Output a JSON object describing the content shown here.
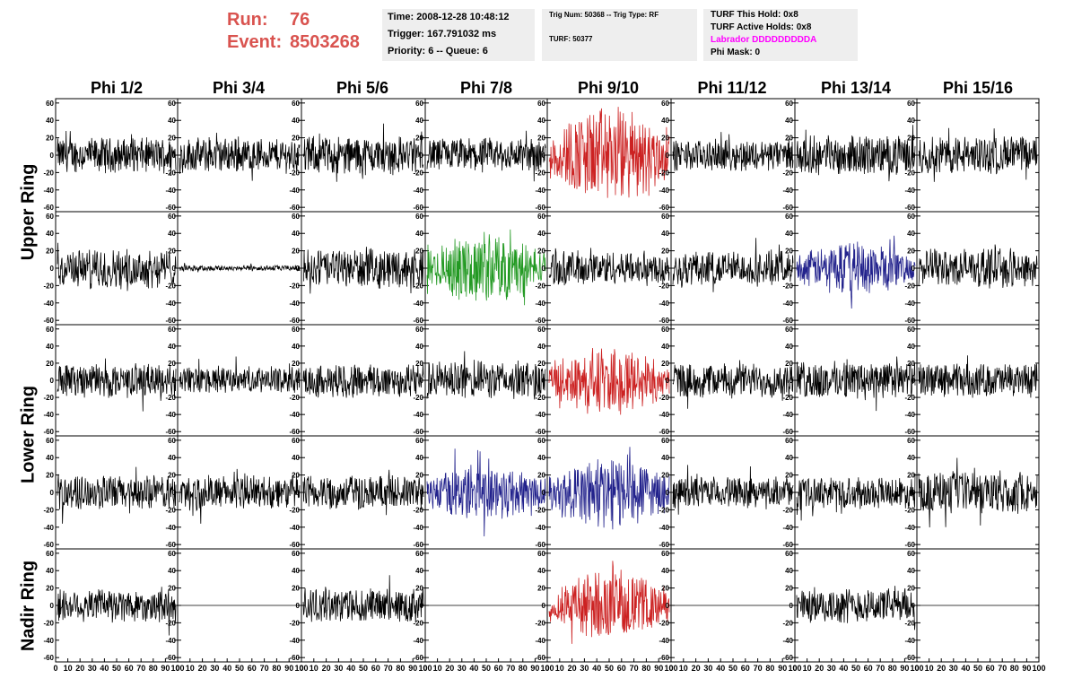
{
  "header": {
    "run_label": "Run:",
    "run_value": "76",
    "event_label": "Event:",
    "event_value": "8503268"
  },
  "info_time": {
    "time": "Time: 2008-12-28 10:48:12",
    "trigger": "Trigger: 167.791032 ms",
    "priority": "Priority: 6 -- Queue: 6"
  },
  "info_trig": {
    "trig": "Trig Num: 50368 -- Trig Type: RF",
    "turf": "TURF: 50377"
  },
  "info_turf": {
    "this_hold": "TURF This Hold: 0x8",
    "active_holds": "TURF Active Holds: 0x8",
    "labrador": "Labrador DDDDDDDDDA",
    "phi_mask": "Phi Mask: 0"
  },
  "colors": {
    "run_text": "#d9534f",
    "labrador": "#ff00ff",
    "trace_black": "#000000",
    "trace_red": "#cc2222",
    "trace_green": "#229922",
    "trace_blue": "#22228c",
    "info_bg": "#eeeeee"
  },
  "chart_data": {
    "type": "line",
    "columns": [
      "Phi 1/2",
      "Phi 3/4",
      "Phi 5/6",
      "Phi 7/8",
      "Phi 9/10",
      "Phi 11/12",
      "Phi 13/14",
      "Phi 15/16"
    ],
    "rows": [
      "Upper Ring",
      "Upper Ring",
      "Lower Ring",
      "Lower Ring",
      "Nadir Ring"
    ],
    "ring_labels": [
      "Upper Ring",
      "Lower Ring",
      "Nadir Ring"
    ],
    "ylim": [
      -65,
      65
    ],
    "xlim": [
      0,
      100
    ],
    "x_tick_labels": [
      "0",
      "10",
      "20",
      "30",
      "40",
      "50",
      "60",
      "70",
      "80",
      "90",
      "100"
    ],
    "y_tick_labels": [
      "-60",
      "-40",
      "-20",
      "0",
      "20",
      "40",
      "60"
    ],
    "trace_colors": [
      [
        "black",
        "black",
        "black",
        "black",
        "red",
        "black",
        "black",
        "black"
      ],
      [
        "black",
        "black",
        "black",
        "green",
        "black",
        "black",
        "blue",
        "black"
      ],
      [
        "black",
        "black",
        "black",
        "black",
        "red",
        "black",
        "black",
        "black"
      ],
      [
        "black",
        "black",
        "black",
        "blue",
        "blue",
        "black",
        "black",
        "black"
      ],
      [
        "black",
        "black",
        "black",
        "black",
        "red",
        "black",
        "black",
        "black"
      ]
    ],
    "amplitudes": [
      [
        18,
        18,
        20,
        18,
        40,
        16,
        20,
        20
      ],
      [
        20,
        3,
        20,
        28,
        18,
        18,
        22,
        20
      ],
      [
        18,
        14,
        18,
        20,
        28,
        18,
        20,
        18
      ],
      [
        18,
        18,
        18,
        24,
        30,
        16,
        16,
        22
      ],
      [
        18,
        0,
        18,
        0,
        28,
        0,
        18,
        0
      ]
    ],
    "grid": false
  }
}
